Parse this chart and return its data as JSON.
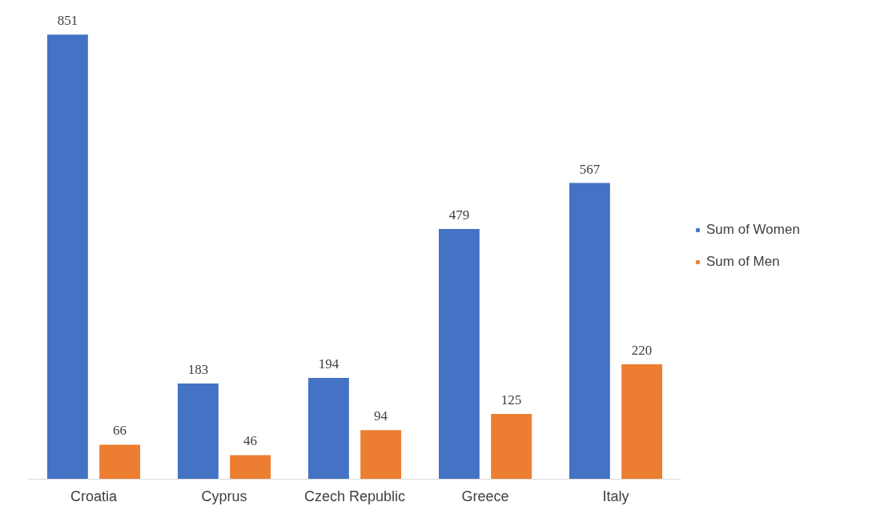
{
  "chart_data": {
    "type": "bar",
    "categories": [
      "Croatia",
      "Cyprus",
      "Czech Republic",
      "Greece",
      "Italy"
    ],
    "series": [
      {
        "name": "Sum of Women",
        "color": "#4472c4",
        "values": [
          851,
          183,
          194,
          479,
          567
        ]
      },
      {
        "name": "Sum of Men",
        "color": "#ed7d31",
        "values": [
          66,
          46,
          94,
          125,
          220
        ]
      }
    ],
    "tick_labels": "x",
    "data_labels": true,
    "legend": "right",
    "grid": false
  }
}
